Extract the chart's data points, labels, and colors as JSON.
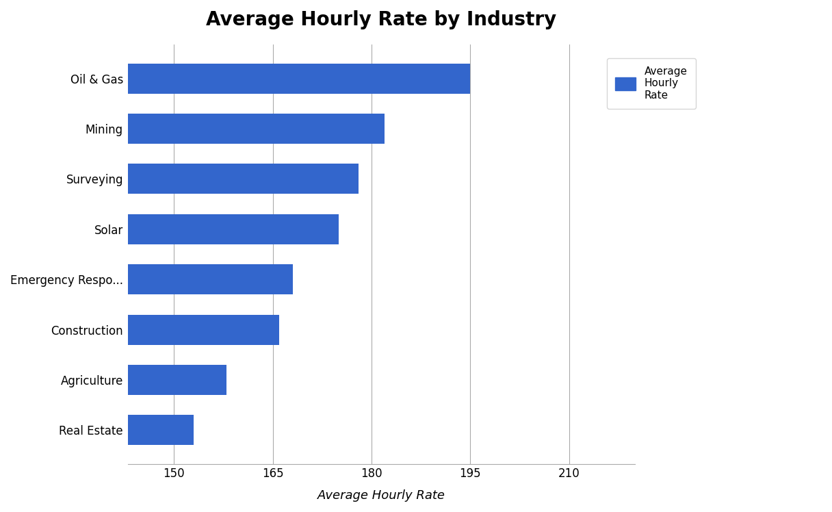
{
  "title": "Average Hourly Rate by Industry",
  "xlabel": "Average Hourly Rate",
  "categories": [
    "Oil & Gas",
    "Mining",
    "Surveying",
    "Solar",
    "Emergency Respo...",
    "Construction",
    "Agriculture",
    "Real Estate"
  ],
  "values": [
    195,
    182,
    178,
    175,
    168,
    166,
    158,
    153
  ],
  "bar_color": "#3366CC",
  "background_color": "#FFFFFF",
  "xlim": [
    143,
    220
  ],
  "xticks": [
    150,
    165,
    180,
    195,
    210
  ],
  "title_fontsize": 20,
  "axis_label_fontsize": 13,
  "tick_fontsize": 12,
  "legend_label": "Average\nHourly\nRate",
  "bar_height": 0.6
}
